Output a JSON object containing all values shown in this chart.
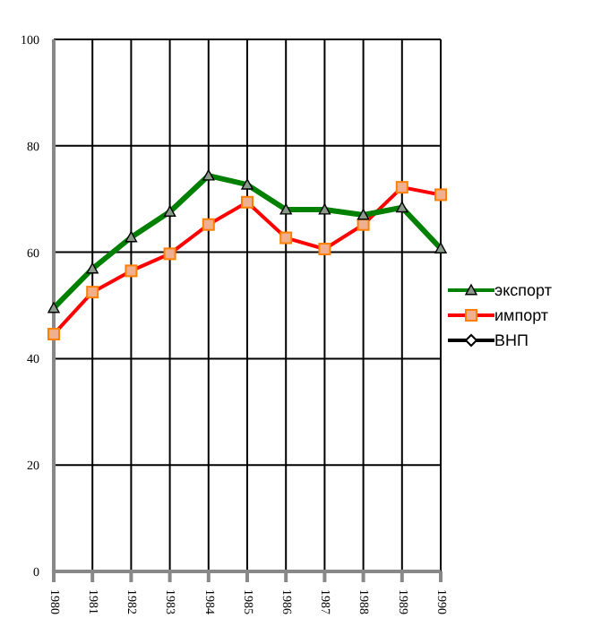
{
  "chart_data": {
    "type": "line",
    "categories": [
      "1980",
      "1981",
      "1982",
      "1983",
      "1984",
      "1985",
      "1986",
      "1987",
      "1988",
      "1989",
      "1990"
    ],
    "series": [
      {
        "name": "экспорт",
        "color": "#008000",
        "marker": "triangle",
        "values": [
          49.5,
          56.9,
          62.8,
          67.6,
          74.4,
          72.7,
          68,
          68,
          67,
          68.4,
          60.7
        ]
      },
      {
        "name": "импорт",
        "color": "#ff0000",
        "marker": "square",
        "values": [
          44.6,
          52.5,
          56.5,
          59.7,
          65.2,
          69.4,
          62.7,
          60.6,
          65.2,
          72.2,
          70.8
        ]
      },
      {
        "name": "ВНП",
        "color": "#000000",
        "marker": "diamond",
        "values": [
          null,
          null,
          null,
          null,
          null,
          null,
          null,
          null,
          null,
          null,
          null
        ]
      }
    ],
    "ylim": [
      0,
      100
    ],
    "yticks": [
      0,
      20,
      40,
      60,
      80,
      100
    ],
    "grid": true,
    "legend": "right"
  }
}
